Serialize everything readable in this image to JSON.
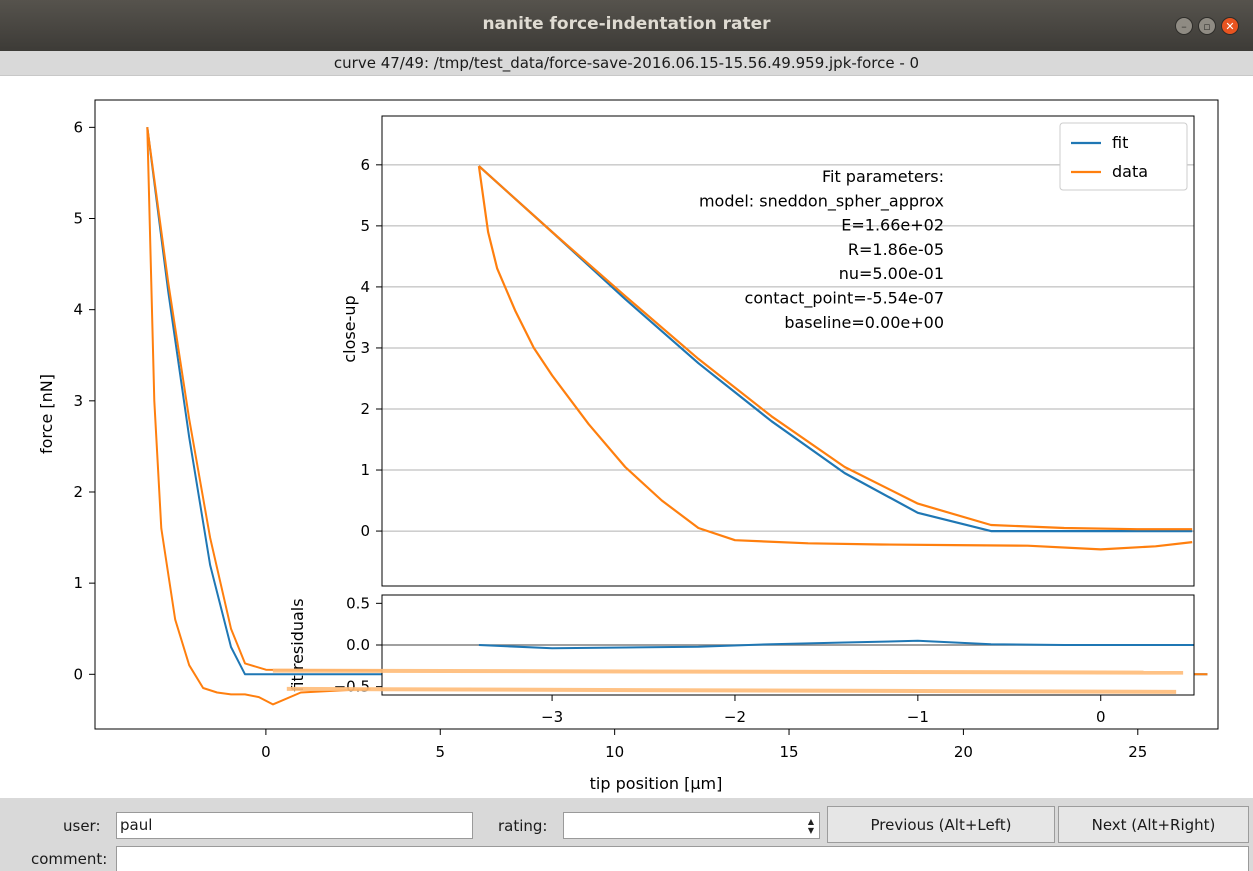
{
  "window": {
    "title": "nanite force-indentation rater",
    "subtitle": "curve 47/49: /tmp/test_data/force-save-2016.06.15-15.56.49.959.jpk-force - 0"
  },
  "colors": {
    "fit": "#1f77b4",
    "data": "#ff7f0e",
    "residual_data": "#ffbb78"
  },
  "main_plot": {
    "xlabel": "tip position [μm]",
    "ylabel": "force [nN]",
    "xticks": [
      "0",
      "5",
      "10",
      "15",
      "20",
      "25"
    ],
    "yticks": [
      "0",
      "1",
      "2",
      "3",
      "4",
      "5",
      "6"
    ]
  },
  "closeup_plot": {
    "ylabel": "close-up",
    "yticks": [
      "0",
      "1",
      "2",
      "3",
      "4",
      "5",
      "6"
    ],
    "legend": [
      "fit",
      "data"
    ],
    "fit_params": [
      "Fit parameters:",
      "model: sneddon_spher_approx",
      "E=1.66e+02",
      "R=1.86e-05",
      "nu=5.00e-01",
      "contact_point=-5.54e-07",
      "baseline=0.00e+00"
    ]
  },
  "residual_plot": {
    "ylabel": "fit residuals",
    "yticks": [
      "0.5",
      "0.0",
      "−0.5"
    ],
    "xticks": [
      "−3",
      "−2",
      "−1",
      "0"
    ]
  },
  "chart_data": [
    {
      "type": "line",
      "title": "",
      "xlabel": "tip position [μm]",
      "ylabel": "force [nN]",
      "xlim": [
        -4.9,
        27.3
      ],
      "ylim": [
        -0.6,
        6.3
      ],
      "series": [
        {
          "name": "fit",
          "x": [
            -3.4,
            -2.8,
            -2.2,
            -1.6,
            -1.0,
            -0.6,
            0,
            27
          ],
          "y": [
            6.0,
            4.2,
            2.6,
            1.2,
            0.3,
            0.0,
            0.0,
            0.0
          ]
        },
        {
          "name": "data",
          "x": [
            -3.4,
            -2.8,
            -2.2,
            -1.6,
            -1.0,
            -0.6,
            0,
            5,
            10,
            15,
            20,
            27
          ],
          "y": [
            6.0,
            4.3,
            2.8,
            1.5,
            0.5,
            0.12,
            0.05,
            0.04,
            0.03,
            0.02,
            0.01,
            0.0
          ]
        },
        {
          "name": "data",
          "x": [
            -3.4,
            -3.2,
            -3.0,
            -2.6,
            -2.2,
            -1.8,
            -1.4,
            -1.0,
            -0.6,
            -0.2,
            0.2,
            1.0,
            3.0
          ],
          "y": [
            6.0,
            3.0,
            1.6,
            0.6,
            0.1,
            -0.15,
            -0.2,
            -0.22,
            -0.22,
            -0.25,
            -0.33,
            -0.2,
            -0.16
          ]
        }
      ]
    },
    {
      "type": "line",
      "title": "",
      "xlabel": "",
      "ylabel": "close-up",
      "xlim": [
        -3.93,
        0.51
      ],
      "ylim": [
        -0.9,
        6.8
      ],
      "legend": "top-right",
      "grid": "y",
      "series": [
        {
          "name": "fit",
          "x": [
            -3.4,
            -3.0,
            -2.6,
            -2.2,
            -1.8,
            -1.4,
            -1.0,
            -0.6,
            0.0,
            0.5
          ],
          "y": [
            5.98,
            4.9,
            3.8,
            2.75,
            1.8,
            0.95,
            0.3,
            0.0,
            0.0,
            0.0
          ]
        },
        {
          "name": "data",
          "x": [
            -3.4,
            -3.0,
            -2.6,
            -2.2,
            -1.8,
            -1.4,
            -1.0,
            -0.6,
            -0.2,
            0.2,
            0.5
          ],
          "y": [
            5.98,
            4.9,
            3.85,
            2.82,
            1.88,
            1.05,
            0.45,
            0.1,
            0.05,
            0.03,
            0.03
          ]
        },
        {
          "name": "data",
          "x": [
            -3.4,
            -3.35,
            -3.3,
            -3.2,
            -3.1,
            -3.0,
            -2.8,
            -2.6,
            -2.4,
            -2.2,
            -2.0,
            -1.6,
            -1.2,
            -0.8,
            -0.4,
            0.0,
            0.3,
            0.5
          ],
          "y": [
            5.98,
            4.9,
            4.3,
            3.6,
            3.0,
            2.55,
            1.75,
            1.05,
            0.5,
            0.05,
            -0.15,
            -0.2,
            -0.22,
            -0.23,
            -0.24,
            -0.3,
            -0.25,
            -0.18
          ]
        }
      ]
    },
    {
      "type": "line",
      "title": "",
      "xlabel": "",
      "ylabel": "fit residuals",
      "xlim": [
        -3.93,
        0.51
      ],
      "ylim": [
        -0.6,
        0.6
      ],
      "series": [
        {
          "name": "fit residuals",
          "x": [
            -3.93,
            0.51
          ],
          "y": [
            0.0,
            0.0
          ]
        },
        {
          "name": "fit residuals",
          "x": [
            -3.4,
            -3.0,
            -2.6,
            -2.2,
            -1.8,
            -1.4,
            -1.0,
            -0.6,
            -0.2,
            0.2,
            0.51
          ],
          "y": [
            0.0,
            -0.04,
            -0.03,
            -0.02,
            0.01,
            0.03,
            0.05,
            0.01,
            0.0,
            0.0,
            0.0
          ]
        }
      ]
    }
  ],
  "controls": {
    "user_label": "user:",
    "user_value": "paul",
    "rating_label": "rating:",
    "rating_value": "",
    "prev_button": "Previous (Alt+Left)",
    "next_button": "Next (Alt+Right)",
    "comment_label": "comment:",
    "comment_value": "",
    "spin_up": "▲",
    "spin_down": "▼"
  }
}
